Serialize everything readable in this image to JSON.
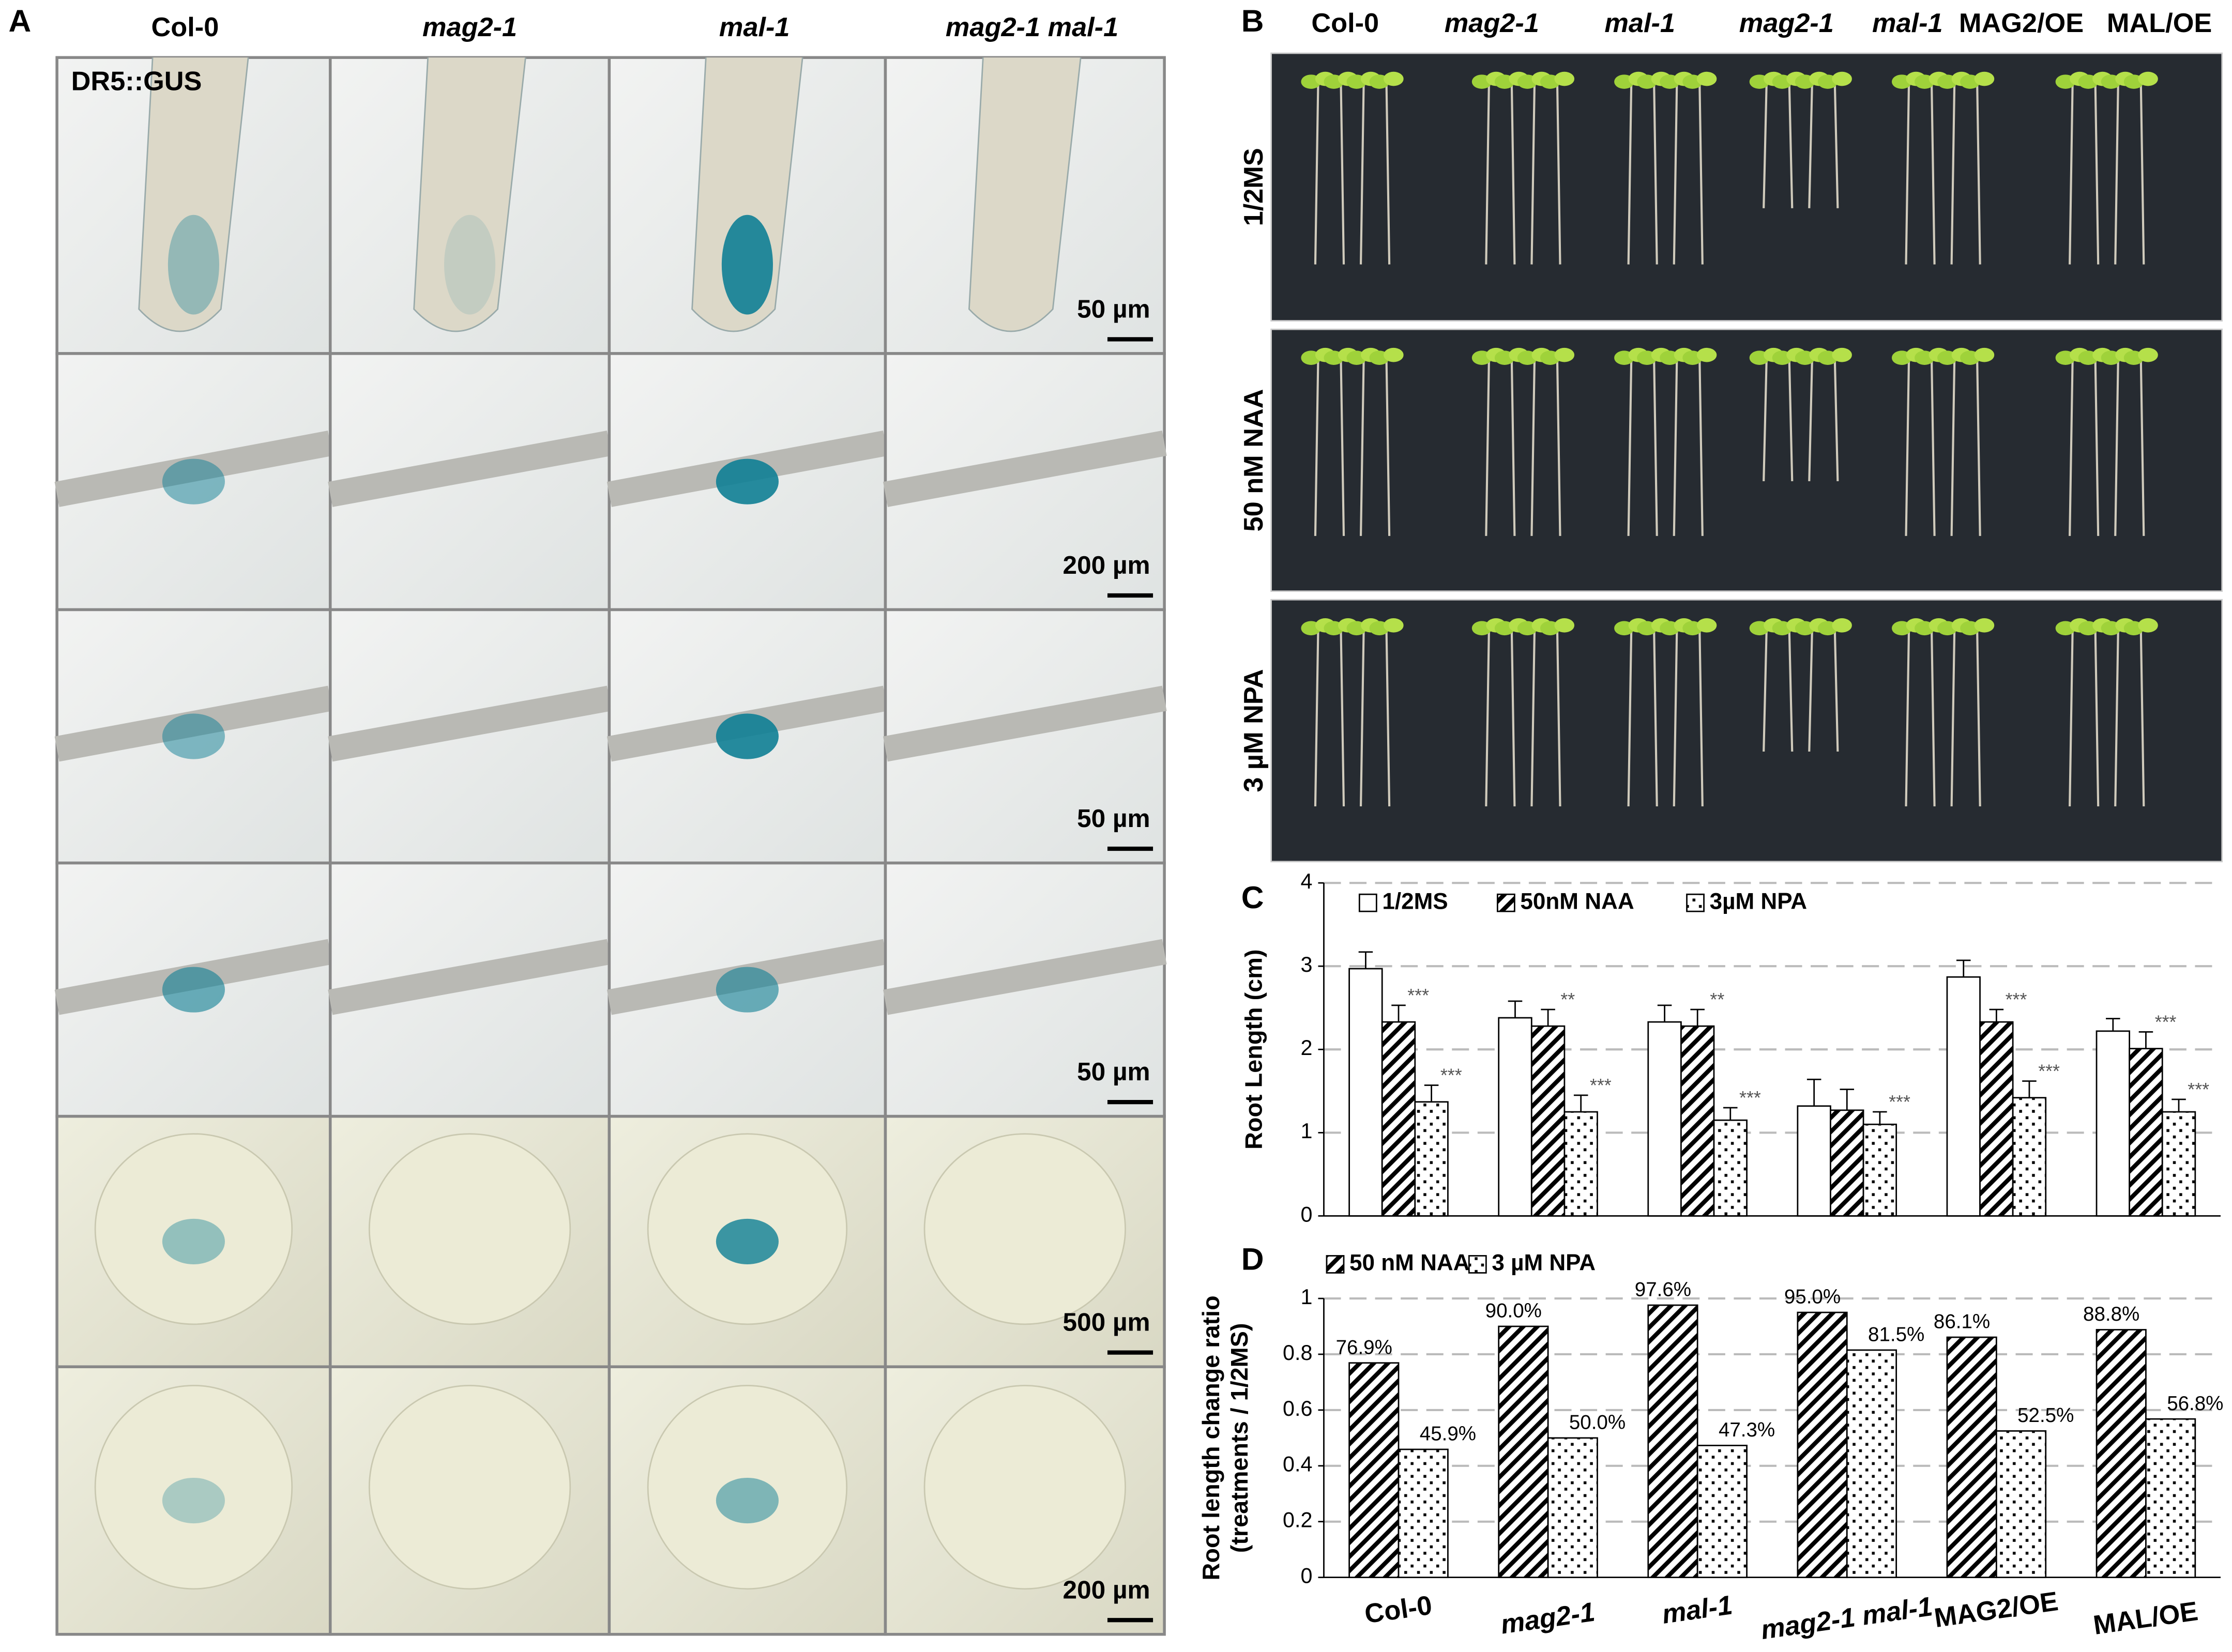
{
  "panel_labels": [
    "A",
    "B",
    "C",
    "D"
  ],
  "panel_a": {
    "columns": [
      "Col-0",
      "mag2-1",
      "mal-1",
      "mag2-1 mal-1"
    ],
    "marker": "DR5::GUS",
    "scale_bars": [
      "50 µm",
      "200 µm",
      "50 µm",
      "50 µm",
      "500 µm",
      "200 µm"
    ]
  },
  "panel_b": {
    "columns": [
      "Col-0",
      "mag2-1",
      "mal-1",
      "mag2-1",
      "mal-1",
      "MAG2/OE",
      "MAL/OE"
    ],
    "rows": [
      "1/2MS",
      "50 nM NAA",
      "3 µM NPA"
    ]
  },
  "chart_data": [
    {
      "type": "bar",
      "ylabel": "Root Length (cm)",
      "ylim": [
        0,
        4
      ],
      "yticks": [
        0,
        1,
        2,
        3,
        4
      ],
      "grid": true,
      "legend": "top",
      "series": [
        {
          "name": "1/2MS",
          "color": "#ffffff",
          "pattern": "none",
          "values": [
            2.97,
            2.38,
            2.33,
            1.32,
            2.87,
            2.22
          ],
          "errors": [
            0.2,
            0.2,
            0.2,
            0.32,
            0.2,
            0.15
          ],
          "sig": [
            null,
            null,
            null,
            null,
            null,
            null
          ]
        },
        {
          "name": "50nM NAA",
          "color": "#ffffff",
          "pattern": "diagonal",
          "values": [
            2.33,
            2.28,
            2.28,
            1.27,
            2.33,
            2.01
          ],
          "errors": [
            0.2,
            0.2,
            0.2,
            0.25,
            0.15,
            0.2
          ],
          "sig": [
            "***",
            "**",
            "**",
            null,
            "***",
            "***"
          ]
        },
        {
          "name": "3µM NPA",
          "color": "#ffffff",
          "pattern": "dots",
          "values": [
            1.37,
            1.25,
            1.15,
            1.1,
            1.42,
            1.25
          ],
          "errors": [
            0.2,
            0.2,
            0.15,
            0.15,
            0.2,
            0.15
          ],
          "sig": [
            "***",
            "***",
            "***",
            "***",
            "***",
            "***"
          ]
        }
      ]
    },
    {
      "type": "bar",
      "ylabel": [
        "Root length change ratio",
        "(treatments / 1/2MS)"
      ],
      "ylim": [
        0,
        1
      ],
      "yticks": [
        0,
        0.2,
        0.4,
        0.6,
        0.8,
        1
      ],
      "grid": true,
      "legend": "top",
      "categories": [
        "Col-0",
        "mag2-1",
        "mal-1",
        "mag2-1 mal-1",
        "MAG2/OE",
        "MAL/OE"
      ],
      "series": [
        {
          "name": "50 nM NAA",
          "color": "#ffffff",
          "pattern": "diagonal",
          "values": [
            0.769,
            0.9,
            0.976,
            0.95,
            0.861,
            0.888
          ],
          "value_labels": [
            "76.9%",
            "90.0%",
            "97.6%",
            "95.0%",
            "86.1%",
            "88.8%"
          ]
        },
        {
          "name": "3 µM NPA",
          "color": "#ffffff",
          "pattern": "dots",
          "values": [
            0.459,
            0.5,
            0.473,
            0.815,
            0.525,
            0.568
          ],
          "value_labels": [
            "45.9%",
            "50.0%",
            "47.3%",
            "81.5%",
            "52.5%",
            "56.8%"
          ]
        }
      ]
    }
  ]
}
